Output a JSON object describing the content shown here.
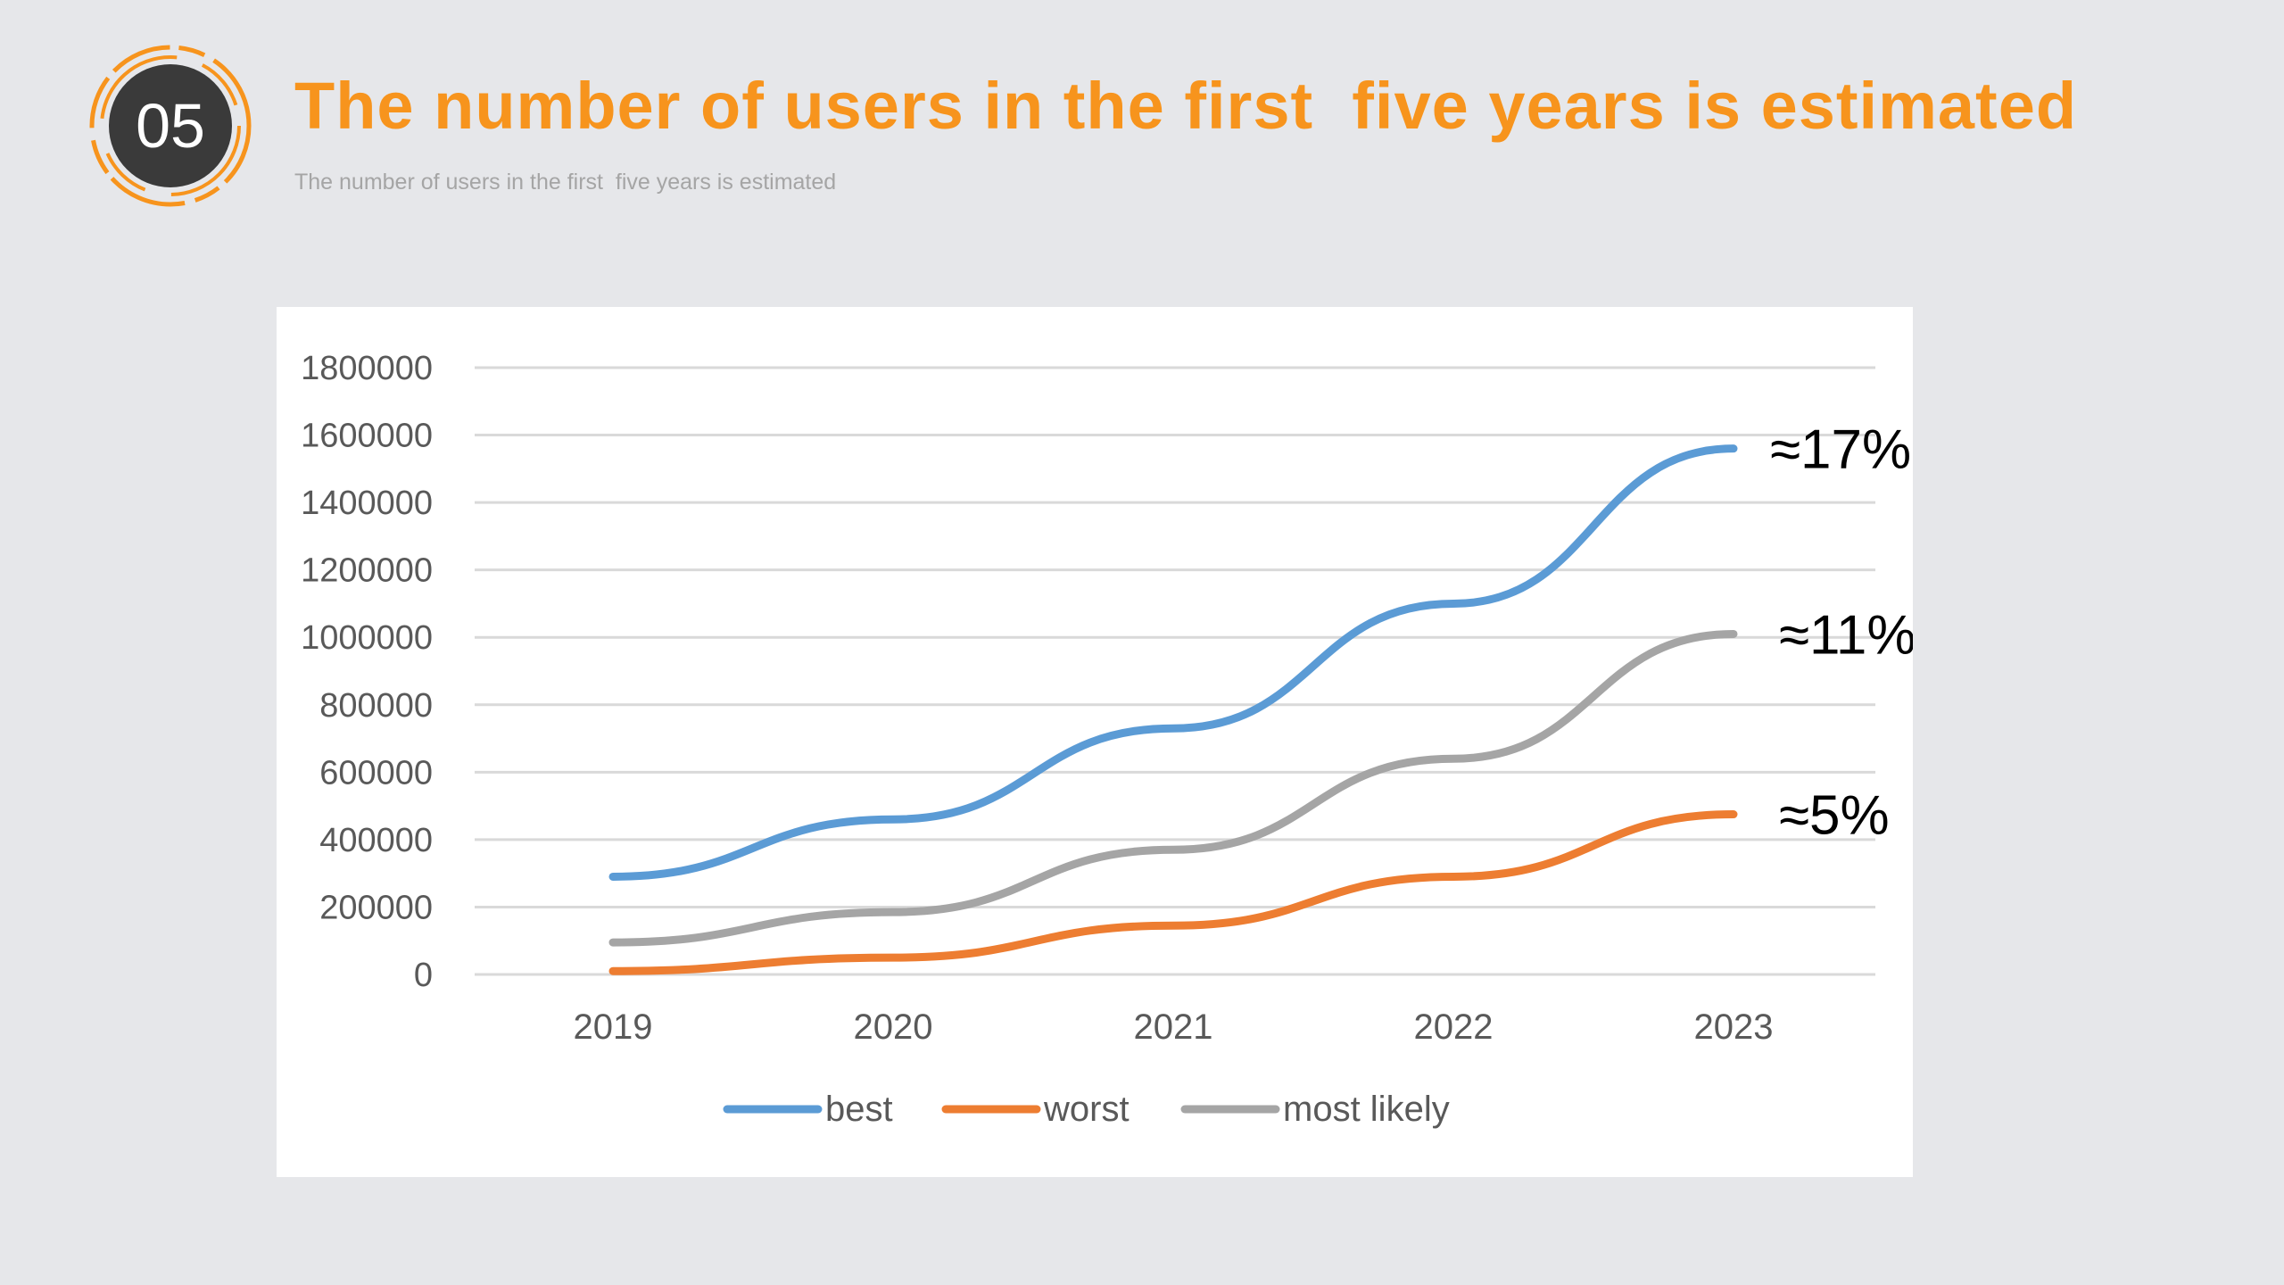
{
  "header": {
    "section_number": "05",
    "title": "The number of users in the first  five years is estimated",
    "subtitle": "The number of users in the first  five years is estimated"
  },
  "colors": {
    "accent": "#f7941d",
    "badge_fill": "#3a3a3a",
    "background": "#e6e7ea"
  },
  "chart_data": {
    "type": "line",
    "title": "",
    "xlabel": "",
    "ylabel": "",
    "categories": [
      "2019",
      "2020",
      "2021",
      "2022",
      "2023"
    ],
    "ylim": [
      0,
      1800000
    ],
    "yticks": [
      0,
      200000,
      400000,
      600000,
      800000,
      1000000,
      1200000,
      1400000,
      1600000,
      1800000
    ],
    "grid": true,
    "legend_position": "bottom",
    "series": [
      {
        "name": "best",
        "color": "#5b9bd5",
        "values": [
          290000,
          460000,
          730000,
          1100000,
          1560000
        ],
        "annotation": "≈17%"
      },
      {
        "name": "worst",
        "color": "#ed7d31",
        "values": [
          10000,
          50000,
          145000,
          290000,
          475000
        ],
        "annotation": "≈5%"
      },
      {
        "name": "most likely",
        "color": "#a5a5a5",
        "values": [
          95000,
          185000,
          370000,
          640000,
          1010000
        ],
        "annotation": "≈11%"
      }
    ]
  }
}
